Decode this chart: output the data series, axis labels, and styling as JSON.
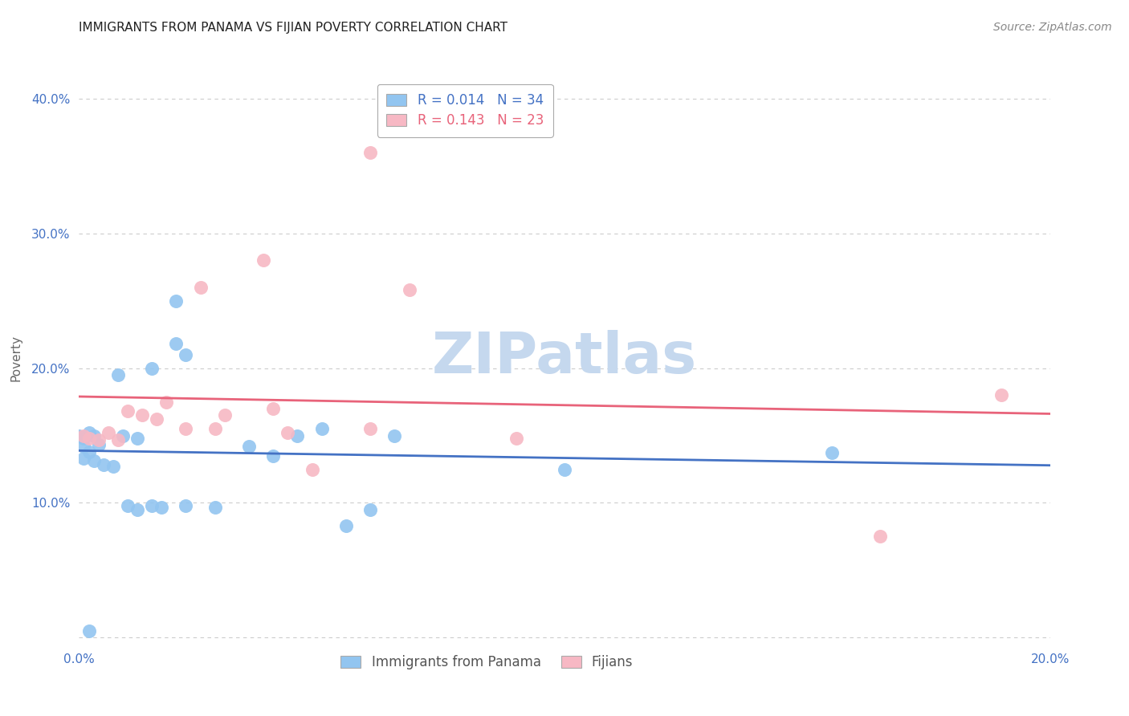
{
  "title": "IMMIGRANTS FROM PANAMA VS FIJIAN POVERTY CORRELATION CHART",
  "source": "Source: ZipAtlas.com",
  "xlabel": "",
  "ylabel": "Poverty",
  "xlim": [
    0.0,
    0.2
  ],
  "ylim": [
    -0.005,
    0.42
  ],
  "xticks": [
    0.0,
    0.04,
    0.08,
    0.12,
    0.16,
    0.2
  ],
  "yticks": [
    0.0,
    0.1,
    0.2,
    0.3,
    0.4
  ],
  "xtick_labels": [
    "0.0%",
    "",
    "",
    "",
    "",
    "20.0%"
  ],
  "ytick_labels": [
    "",
    "10.0%",
    "20.0%",
    "30.0%",
    "40.0%"
  ],
  "blue_series_label": "Immigrants from Panama",
  "pink_series_label": "Fijians",
  "blue_R": "0.014",
  "blue_N": "34",
  "pink_R": "0.143",
  "pink_N": "23",
  "blue_color": "#92C5F0",
  "pink_color": "#F7B8C4",
  "blue_line_color": "#4472C4",
  "pink_line_color": "#E8637A",
  "blue_points": [
    [
      0.0,
      0.15
    ],
    [
      0.001,
      0.148
    ],
    [
      0.002,
      0.152
    ],
    [
      0.003,
      0.15
    ],
    [
      0.001,
      0.142
    ],
    [
      0.002,
      0.138
    ],
    [
      0.004,
      0.143
    ],
    [
      0.001,
      0.133
    ],
    [
      0.003,
      0.131
    ],
    [
      0.005,
      0.128
    ],
    [
      0.007,
      0.127
    ],
    [
      0.009,
      0.15
    ],
    [
      0.012,
      0.148
    ],
    [
      0.008,
      0.195
    ],
    [
      0.015,
      0.2
    ],
    [
      0.02,
      0.218
    ],
    [
      0.01,
      0.098
    ],
    [
      0.012,
      0.095
    ],
    [
      0.015,
      0.098
    ],
    [
      0.017,
      0.097
    ],
    [
      0.022,
      0.098
    ],
    [
      0.028,
      0.097
    ],
    [
      0.02,
      0.25
    ],
    [
      0.022,
      0.21
    ],
    [
      0.035,
      0.142
    ],
    [
      0.04,
      0.135
    ],
    [
      0.045,
      0.15
    ],
    [
      0.05,
      0.155
    ],
    [
      0.055,
      0.083
    ],
    [
      0.06,
      0.095
    ],
    [
      0.065,
      0.15
    ],
    [
      0.1,
      0.125
    ],
    [
      0.155,
      0.137
    ],
    [
      0.002,
      0.005
    ]
  ],
  "pink_points": [
    [
      0.001,
      0.15
    ],
    [
      0.002,
      0.148
    ],
    [
      0.004,
      0.147
    ],
    [
      0.006,
      0.152
    ],
    [
      0.008,
      0.147
    ],
    [
      0.01,
      0.168
    ],
    [
      0.013,
      0.165
    ],
    [
      0.016,
      0.162
    ],
    [
      0.018,
      0.175
    ],
    [
      0.022,
      0.155
    ],
    [
      0.028,
      0.155
    ],
    [
      0.03,
      0.165
    ],
    [
      0.04,
      0.17
    ],
    [
      0.043,
      0.152
    ],
    [
      0.048,
      0.125
    ],
    [
      0.06,
      0.155
    ],
    [
      0.09,
      0.148
    ],
    [
      0.038,
      0.28
    ],
    [
      0.06,
      0.36
    ],
    [
      0.025,
      0.26
    ],
    [
      0.068,
      0.258
    ],
    [
      0.19,
      0.18
    ],
    [
      0.165,
      0.075
    ]
  ],
  "watermark": "ZIPatlas",
  "watermark_color": "#c5d8ee",
  "background_color": "#ffffff",
  "grid_color": "#cccccc",
  "title_fontsize": 11,
  "tick_fontsize": 11,
  "legend_fontsize": 12
}
